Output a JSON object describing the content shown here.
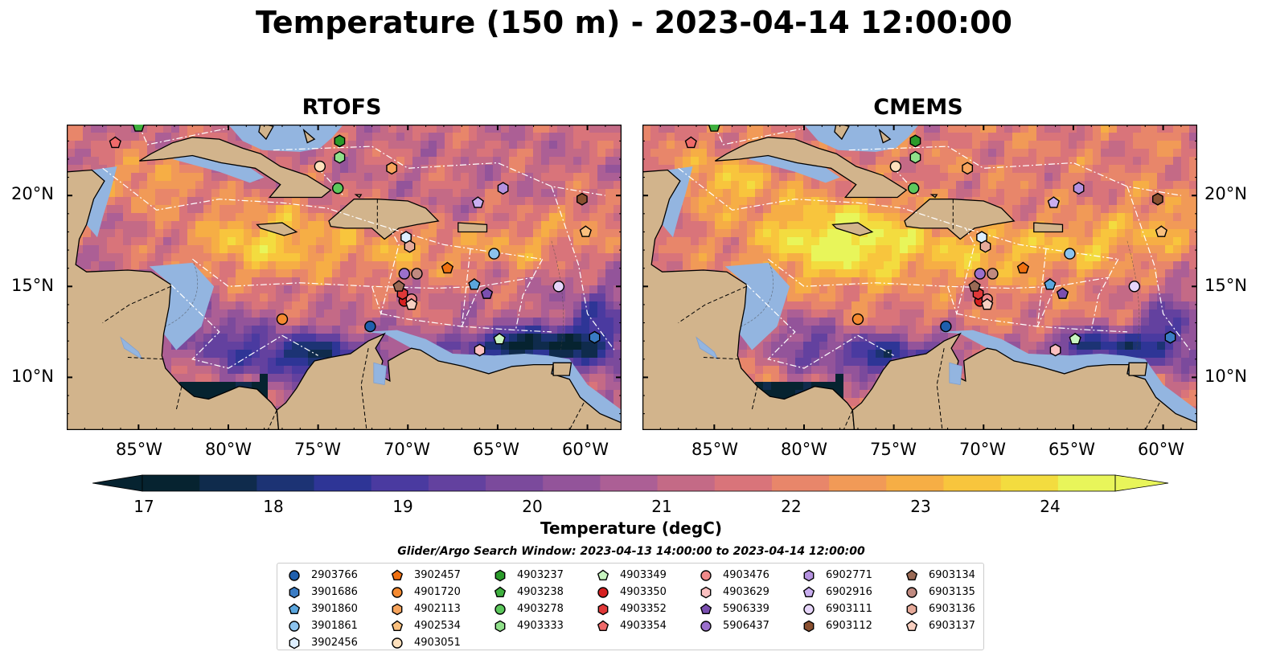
{
  "title": "Temperature (150 m) - 2023-04-14 12:00:00",
  "panels": [
    {
      "title": "RTOFS"
    },
    {
      "title": "CMEMS"
    }
  ],
  "lat_labels": [
    "20°N",
    "15°N",
    "10°N"
  ],
  "lon_labels": [
    "85°W",
    "80°W",
    "75°W",
    "70°W",
    "65°W",
    "60°W"
  ],
  "colorbar": {
    "label": "Temperature (degC)",
    "ticks": [
      "17",
      "18",
      "19",
      "20",
      "21",
      "22",
      "23",
      "24"
    ],
    "min": 16.75,
    "max": 24.75,
    "extend": "both",
    "colors": [
      "#062330",
      "#0f2b4c",
      "#1c3374",
      "#2e3596",
      "#4a3aa0",
      "#63419f",
      "#7b4a9c",
      "#93549a",
      "#ac5f95",
      "#c46a86",
      "#d9747a",
      "#e8866a",
      "#f19a57",
      "#f6ae45",
      "#f8c53d",
      "#f3dc3f",
      "#e8f55a"
    ]
  },
  "search_window": "Glider/Argo Search Window: 2023-04-13 14:00:00 to 2023-04-14 12:00:00",
  "colors": {
    "land": "#d2b48c",
    "shelf": "#93b5e0",
    "eez_line": "#ffffff",
    "border": "#000000"
  },
  "legend": [
    [
      {
        "id": "2903766",
        "shape": "circle",
        "color": "#1f5fad"
      },
      {
        "id": "3901686",
        "shape": "hexagon",
        "color": "#3a7cc4"
      },
      {
        "id": "3901860",
        "shape": "pentagon",
        "color": "#5aa6de"
      },
      {
        "id": "3901861",
        "shape": "circle",
        "color": "#8cc3ee"
      },
      {
        "id": "3902456",
        "shape": "hexagon",
        "color": "#ddeeff"
      }
    ],
    [
      {
        "id": "3902457",
        "shape": "pentagon",
        "color": "#f07010"
      },
      {
        "id": "4901720",
        "shape": "circle",
        "color": "#f58a30"
      },
      {
        "id": "4902113",
        "shape": "hexagon",
        "color": "#f7a45c"
      },
      {
        "id": "4902534",
        "shape": "pentagon",
        "color": "#fac07e"
      },
      {
        "id": "4903051",
        "shape": "circle",
        "color": "#fde0bc"
      }
    ],
    [
      {
        "id": "4903237",
        "shape": "hexagon",
        "color": "#2a9a2a"
      },
      {
        "id": "4903238",
        "shape": "pentagon",
        "color": "#3fb03f"
      },
      {
        "id": "4903278",
        "shape": "circle",
        "color": "#5cc85c"
      },
      {
        "id": "4903333",
        "shape": "hexagon",
        "color": "#90e08a"
      }
    ],
    [
      {
        "id": "4903349",
        "shape": "pentagon",
        "color": "#c8f5c0"
      },
      {
        "id": "4903350",
        "shape": "circle",
        "color": "#d62020"
      },
      {
        "id": "4903352",
        "shape": "hexagon",
        "color": "#e03838"
      },
      {
        "id": "4903354",
        "shape": "pentagon",
        "color": "#ef6a6a"
      }
    ],
    [
      {
        "id": "4903476",
        "shape": "circle",
        "color": "#f08a8a"
      },
      {
        "id": "4903629",
        "shape": "hexagon",
        "color": "#fbc0c0"
      },
      {
        "id": "5906339",
        "shape": "pentagon",
        "color": "#7a4fb0"
      },
      {
        "id": "5906437",
        "shape": "circle",
        "color": "#9b70cc"
      }
    ],
    [
      {
        "id": "6902771",
        "shape": "hexagon",
        "color": "#b592e0"
      },
      {
        "id": "6902916",
        "shape": "pentagon",
        "color": "#c9aef0"
      },
      {
        "id": "6903111",
        "shape": "circle",
        "color": "#e6d5fa"
      },
      {
        "id": "6903112",
        "shape": "hexagon",
        "color": "#8a5030"
      }
    ],
    [
      {
        "id": "6903134",
        "shape": "pentagon",
        "color": "#9a6a55"
      },
      {
        "id": "6903135",
        "shape": "circle",
        "color": "#c08a80"
      },
      {
        "id": "6903136",
        "shape": "hexagon",
        "color": "#e6aa9a"
      },
      {
        "id": "6903137",
        "shape": "pentagon",
        "color": "#f8cfc0"
      }
    ]
  ],
  "markers": [
    {
      "id": "3902457",
      "lon": -67.8,
      "lat": 16.0
    },
    {
      "id": "4901720",
      "lon": -77.0,
      "lat": 13.2
    },
    {
      "id": "2903766",
      "lon": -72.1,
      "lat": 12.8
    },
    {
      "id": "3901686",
      "lon": -59.6,
      "lat": 12.2
    },
    {
      "id": "3901860",
      "lon": -66.3,
      "lat": 15.1
    },
    {
      "id": "3901861",
      "lon": -65.2,
      "lat": 16.8
    },
    {
      "id": "3902456",
      "lon": -70.1,
      "lat": 17.7
    },
    {
      "id": "4902113",
      "lon": -70.9,
      "lat": 21.5
    },
    {
      "id": "4902534",
      "lon": -60.1,
      "lat": 18.0
    },
    {
      "id": "4903051",
      "lon": -74.9,
      "lat": 21.6
    },
    {
      "id": "4903237",
      "lon": -73.8,
      "lat": 23.0
    },
    {
      "id": "4903238",
      "lon": -85.0,
      "lat": 23.8
    },
    {
      "id": "4903278",
      "lon": -73.9,
      "lat": 20.4
    },
    {
      "id": "4903333",
      "lon": -73.8,
      "lat": 22.1
    },
    {
      "id": "4903349",
      "lon": -64.9,
      "lat": 12.1
    },
    {
      "id": "4903350",
      "lon": -70.2,
      "lat": 14.2
    },
    {
      "id": "4903352",
      "lon": -70.3,
      "lat": 14.6
    },
    {
      "id": "4903354",
      "lon": -86.3,
      "lat": 22.9
    },
    {
      "id": "4903476",
      "lon": -69.8,
      "lat": 14.3
    },
    {
      "id": "4903629",
      "lon": -66.0,
      "lat": 11.5
    },
    {
      "id": "5906339",
      "lon": -65.6,
      "lat": 14.6
    },
    {
      "id": "5906437",
      "lon": -70.2,
      "lat": 15.7
    },
    {
      "id": "6902771",
      "lon": -64.7,
      "lat": 20.4
    },
    {
      "id": "6902916",
      "lon": -66.1,
      "lat": 19.6
    },
    {
      "id": "6903111",
      "lon": -61.6,
      "lat": 15.0
    },
    {
      "id": "6903112",
      "lon": -60.3,
      "lat": 19.8
    },
    {
      "id": "6903134",
      "lon": -70.5,
      "lat": 15.0
    },
    {
      "id": "6903135",
      "lon": -69.5,
      "lat": 15.7
    },
    {
      "id": "6903136",
      "lon": -69.9,
      "lat": 17.2
    },
    {
      "id": "6903137",
      "lon": -69.8,
      "lat": 14.0
    }
  ]
}
